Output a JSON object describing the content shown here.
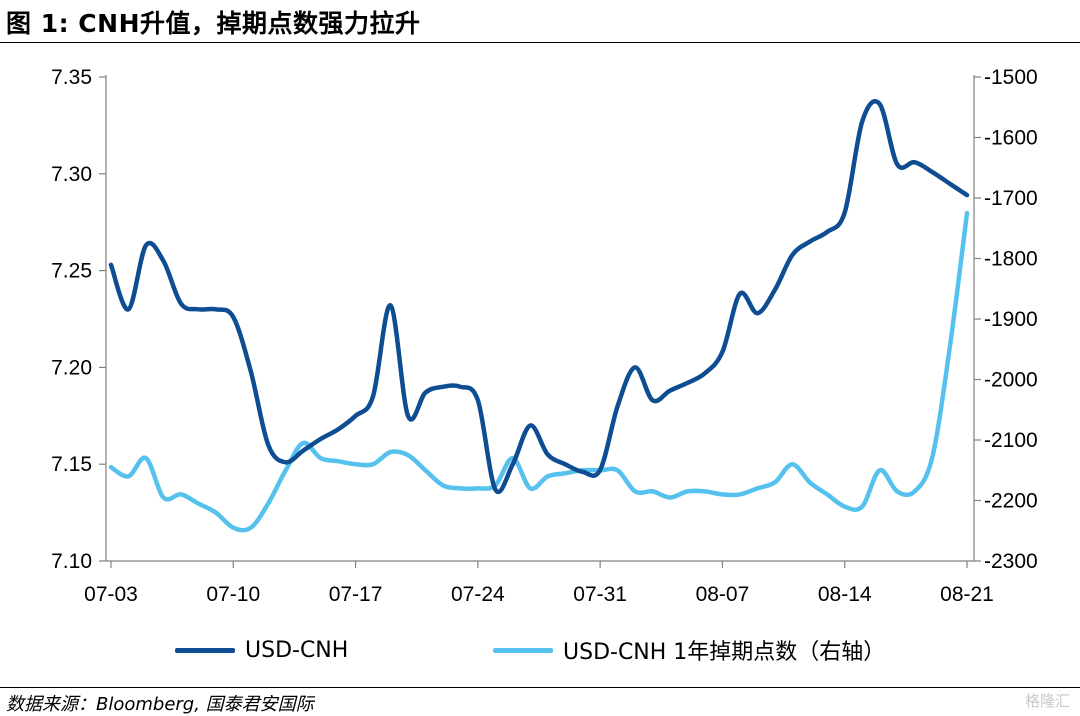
{
  "title": "图 1:   CNH升值，掉期点数强力拉升",
  "source": "数据来源：Bloomberg, 国泰君安国际",
  "watermark": "格隆汇",
  "chart_data": {
    "type": "line",
    "x": [
      "07-03",
      "07-04",
      "07-05",
      "07-06",
      "07-07",
      "07-08",
      "07-09",
      "07-10",
      "07-11",
      "07-12",
      "07-13",
      "07-14",
      "07-15",
      "07-16",
      "07-17",
      "07-18",
      "07-19",
      "07-20",
      "07-21",
      "07-22",
      "07-23",
      "07-24",
      "07-25",
      "07-26",
      "07-27",
      "07-28",
      "07-29",
      "07-30",
      "07-31",
      "08-01",
      "08-02",
      "08-03",
      "08-04",
      "08-05",
      "08-06",
      "08-07",
      "08-08",
      "08-09",
      "08-10",
      "08-11",
      "08-12",
      "08-13",
      "08-14",
      "08-15",
      "08-16",
      "08-17",
      "08-18",
      "08-19",
      "08-20",
      "08-21"
    ],
    "xticks": [
      "07-03",
      "07-10",
      "07-17",
      "07-24",
      "07-31",
      "08-07",
      "08-14",
      "08-21"
    ],
    "yticks_left": [
      "7.35",
      "7.30",
      "7.25",
      "7.20",
      "7.15",
      "7.10"
    ],
    "yticks_right": [
      "-1500",
      "-1600",
      "-1700",
      "-1800",
      "-1900",
      "-2000",
      "-2100",
      "-2200",
      "-2300"
    ],
    "ylim_left": [
      7.1,
      7.35
    ],
    "ylim_right": [
      -2300,
      -1500
    ],
    "series": [
      {
        "name": "USD-CNH",
        "axis": "left",
        "color": "#0e4d92",
        "values": [
          7.253,
          7.23,
          7.263,
          7.255,
          7.233,
          7.23,
          7.23,
          7.226,
          7.198,
          7.16,
          7.151,
          7.157,
          7.163,
          7.168,
          7.175,
          7.185,
          7.232,
          7.175,
          7.187,
          7.19,
          7.19,
          7.183,
          7.137,
          7.15,
          7.17,
          7.155,
          7.15,
          7.146,
          7.147,
          7.18,
          7.2,
          7.183,
          7.188,
          7.192,
          7.197,
          7.208,
          7.238,
          7.228,
          7.24,
          7.258,
          7.265,
          7.27,
          7.28,
          7.327,
          7.336,
          7.305,
          7.306,
          7.301,
          7.295,
          7.289
        ]
      },
      {
        "name": "USD-CNH 1年掉期点数（右轴）",
        "axis": "right",
        "color": "#56c1ed",
        "values": [
          -2145,
          -2160,
          -2130,
          -2195,
          -2190,
          -2205,
          -2220,
          -2245,
          -2245,
          -2205,
          -2150,
          -2105,
          -2130,
          -2135,
          -2140,
          -2140,
          -2120,
          -2125,
          -2150,
          -2175,
          -2180,
          -2180,
          -2175,
          -2130,
          -2180,
          -2160,
          -2155,
          -2150,
          -2150,
          -2150,
          -2185,
          -2185,
          -2195,
          -2185,
          -2185,
          -2190,
          -2190,
          -2180,
          -2170,
          -2140,
          -2170,
          -2190,
          -2210,
          -2210,
          -2150,
          -2185,
          -2185,
          -2130,
          -1950,
          -1725
        ]
      }
    ]
  }
}
